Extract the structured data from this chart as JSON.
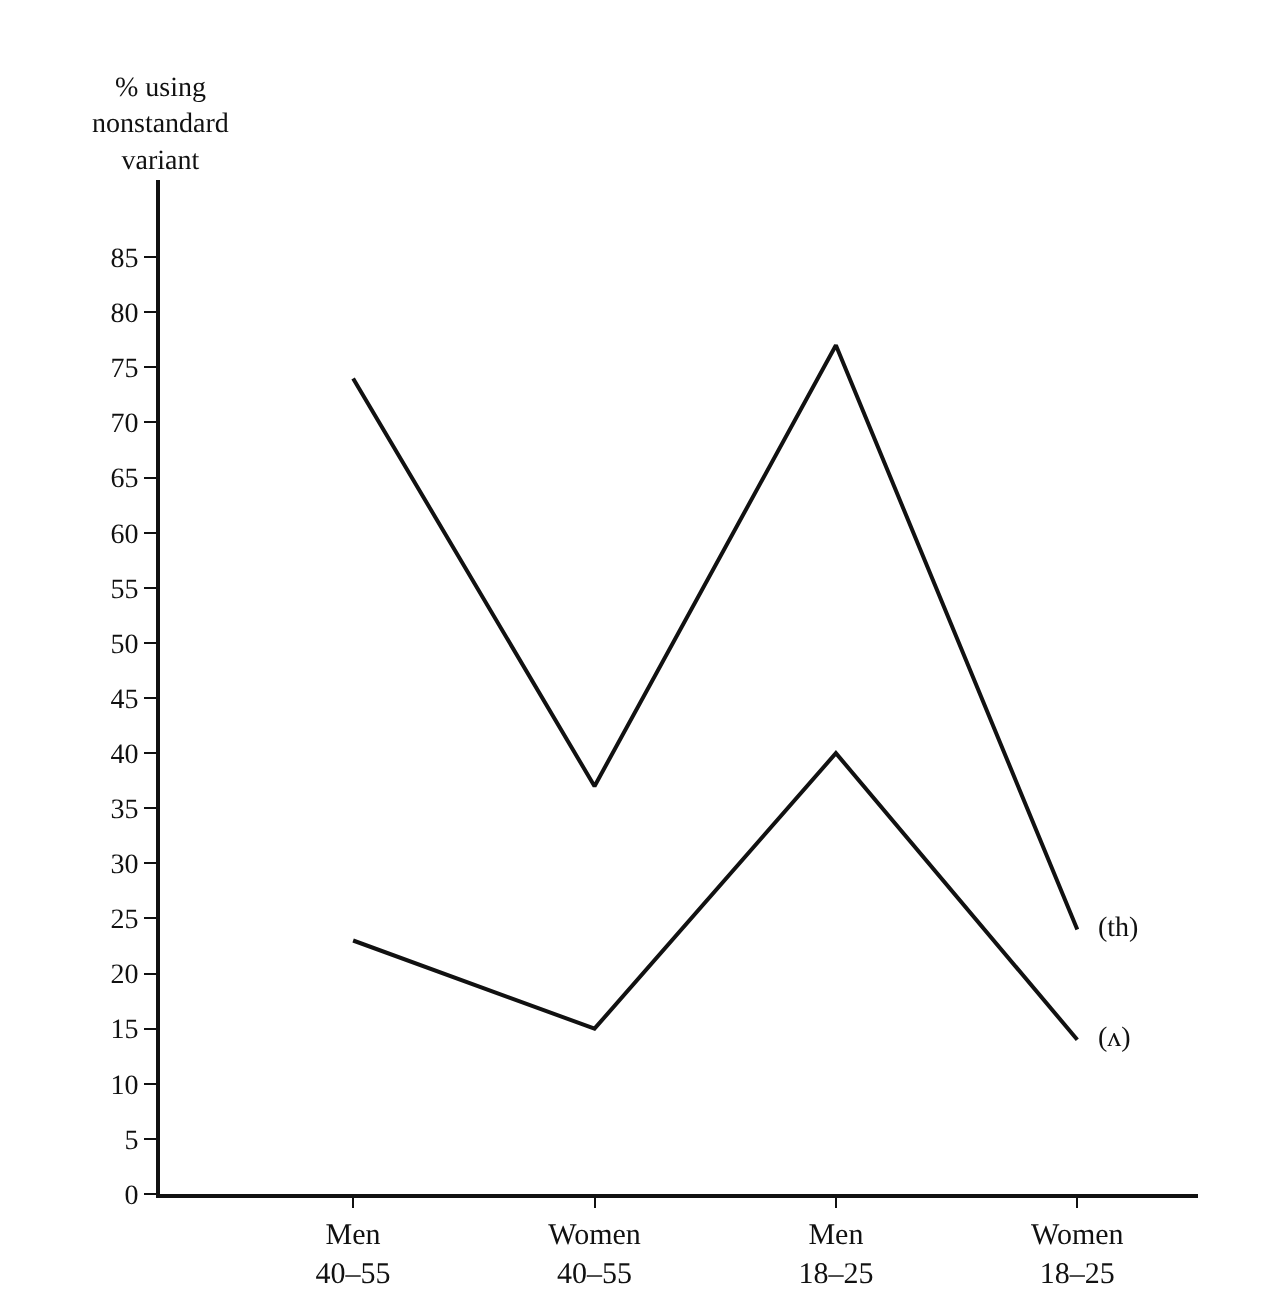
{
  "chart_data": {
    "type": "line",
    "ylabel": "% using\nnonstandard\nvariant",
    "categories": [
      "Men\n40–55",
      "Women\n40–55",
      "Men\n18–25",
      "Women\n18–25"
    ],
    "series": [
      {
        "name": "(th)",
        "color": "#111111",
        "values": [
          74,
          37,
          77,
          24
        ]
      },
      {
        "name": "(ʌ)",
        "color": "#111111",
        "values": [
          23,
          15,
          40,
          14
        ]
      }
    ],
    "ylim": [
      0,
      92
    ],
    "yticks": [
      0,
      5,
      10,
      15,
      20,
      25,
      30,
      35,
      40,
      45,
      50,
      55,
      60,
      65,
      70,
      75,
      80,
      85
    ],
    "legend": false,
    "marker": "none",
    "line_style": "solid"
  }
}
